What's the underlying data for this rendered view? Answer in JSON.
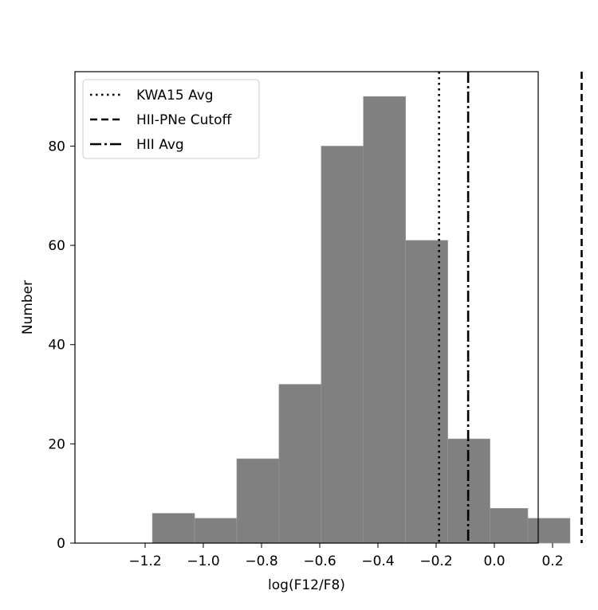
{
  "chart_data": {
    "type": "bar",
    "xlabel": "log(F12/F8)",
    "ylabel": "Number",
    "xlim": [
      -1.2,
      0.33
    ],
    "ylim": [
      0,
      95
    ],
    "xticks": [
      {
        "value": -1.2,
        "label": "−1.2"
      },
      {
        "value": -1.0,
        "label": "−1.0"
      },
      {
        "value": -0.8,
        "label": "−0.8"
      },
      {
        "value": -0.6,
        "label": "−0.6"
      },
      {
        "value": -0.4,
        "label": "−0.4"
      },
      {
        "value": -0.2,
        "label": "−0.2"
      },
      {
        "value": 0.0,
        "label": "0.0"
      },
      {
        "value": 0.2,
        "label": "0.2"
      }
    ],
    "yticks": [
      {
        "value": 0,
        "label": "0"
      },
      {
        "value": 20,
        "label": "20"
      },
      {
        "value": 40,
        "label": "40"
      },
      {
        "value": 60,
        "label": "60"
      },
      {
        "value": 80,
        "label": "80"
      }
    ],
    "bin_edges": [
      -1.175,
      -1.03,
      -0.885,
      -0.74,
      -0.595,
      -0.45,
      -0.305,
      -0.16,
      -0.015,
      0.115,
      0.26
    ],
    "counts": [
      6,
      5,
      17,
      32,
      80,
      90,
      61,
      21,
      7,
      5
    ],
    "bar_color": "#808080",
    "vlines": [
      {
        "name": "KWA15 Avg",
        "x": -0.19,
        "style": "dotted"
      },
      {
        "name": "HII-PNe Cutoff",
        "x": 0.3,
        "style": "dashed"
      },
      {
        "name": "HII Avg",
        "x": -0.09,
        "style": "dashdot"
      }
    ],
    "legend_position": "top-left",
    "grid": false
  }
}
